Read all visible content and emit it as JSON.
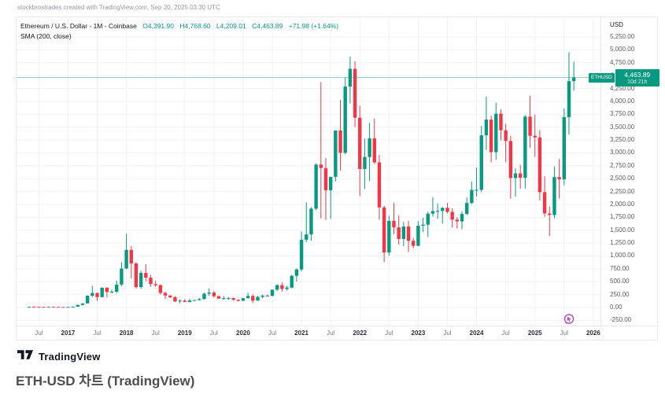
{
  "watermark": "stockbrostrades created with TradingView.com, Sep 20, 2025 03:30 UTC",
  "legend": {
    "symbol": "Ethereum / U.S. Dollar - 1M - Coinbase",
    "ohlc": [
      "O4,391.90",
      "H4,768.60",
      "L4,209.01",
      "C4,463.89",
      "+71.98 (+1.64%)"
    ],
    "indicator": "SMA (200, close)"
  },
  "price_scale": {
    "unit": "USD",
    "ticks": [
      "5,250.00",
      "5,000.00",
      "4,750.00",
      "4,500.00",
      "4,250.00",
      "4,000.00",
      "3,750.00",
      "3,500.00",
      "3,250.00",
      "3,000.00",
      "2,750.00",
      "2,500.00",
      "2,250.00",
      "2,000.00",
      "1,750.00",
      "1,500.00",
      "1,250.00",
      "1,000.00",
      "750.00",
      "500.00",
      "250.00",
      "0.00",
      "-250.00"
    ]
  },
  "current_price_label": {
    "symbol": "ETHUSD",
    "price": "4,463.89",
    "countdown": "10d 21h"
  },
  "time_scale": {
    "labels": [
      "Jul",
      "2017",
      "Jul",
      "2018",
      "Jul",
      "2019",
      "Jul",
      "2020",
      "Jul",
      "2021",
      "Jul",
      "2022",
      "Jul",
      "2023",
      "Jul",
      "2024",
      "Jul",
      "2025",
      "Jul",
      "2026"
    ]
  },
  "footer": {
    "brand": "TradingView",
    "caption": "ETH-USD 차트 (TradingView)"
  },
  "colors": {
    "up": "#089981",
    "down": "#f23645",
    "grid": "#f0f2f5",
    "price_line": "#089981"
  },
  "chart_data": {
    "type": "candlestick",
    "title": "Ethereum / U.S. Dollar - 1M - Coinbase",
    "xlabel": "",
    "ylabel": "USD",
    "ylim": [
      -250,
      5250
    ],
    "y_tick_step": 250,
    "price_line": 4463.89,
    "x": [
      "2016-05",
      "2016-06",
      "2016-07",
      "2016-08",
      "2016-09",
      "2016-10",
      "2016-11",
      "2016-12",
      "2017-01",
      "2017-02",
      "2017-03",
      "2017-04",
      "2017-05",
      "2017-06",
      "2017-07",
      "2017-08",
      "2017-09",
      "2017-10",
      "2017-11",
      "2017-12",
      "2018-01",
      "2018-02",
      "2018-03",
      "2018-04",
      "2018-05",
      "2018-06",
      "2018-07",
      "2018-08",
      "2018-09",
      "2018-10",
      "2018-11",
      "2018-12",
      "2019-01",
      "2019-02",
      "2019-03",
      "2019-04",
      "2019-05",
      "2019-06",
      "2019-07",
      "2019-08",
      "2019-09",
      "2019-10",
      "2019-11",
      "2019-12",
      "2020-01",
      "2020-02",
      "2020-03",
      "2020-04",
      "2020-05",
      "2020-06",
      "2020-07",
      "2020-08",
      "2020-09",
      "2020-10",
      "2020-11",
      "2020-12",
      "2021-01",
      "2021-02",
      "2021-03",
      "2021-04",
      "2021-05",
      "2021-06",
      "2021-07",
      "2021-08",
      "2021-09",
      "2021-10",
      "2021-11",
      "2021-12",
      "2022-01",
      "2022-02",
      "2022-03",
      "2022-04",
      "2022-05",
      "2022-06",
      "2022-07",
      "2022-08",
      "2022-09",
      "2022-10",
      "2022-11",
      "2022-12",
      "2023-01",
      "2023-02",
      "2023-03",
      "2023-04",
      "2023-05",
      "2023-06",
      "2023-07",
      "2023-08",
      "2023-09",
      "2023-10",
      "2023-11",
      "2023-12",
      "2024-01",
      "2024-02",
      "2024-03",
      "2024-04",
      "2024-05",
      "2024-06",
      "2024-07",
      "2024-08",
      "2024-09",
      "2024-10",
      "2024-11",
      "2024-12",
      "2025-01",
      "2025-02",
      "2025-03",
      "2025-04",
      "2025-05",
      "2025-06",
      "2025-07",
      "2025-08",
      "2025-09"
    ],
    "open": [
      9.0,
      14.0,
      12.2,
      11.6,
      11.2,
      13.2,
      11.4,
      9.6,
      8.2,
      10.7,
      16.2,
      50.2,
      79.8,
      228.7,
      280.7,
      201.3,
      383.0,
      301.4,
      305.8,
      445.2,
      756.7,
      1118,
      855,
      396,
      670,
      578,
      455,
      434,
      283,
      233,
      199,
      118,
      133,
      107,
      137,
      142,
      162,
      268,
      291,
      218,
      173,
      181,
      182,
      151,
      130,
      180,
      224,
      133,
      206,
      231,
      226,
      346,
      435,
      360,
      386,
      615,
      738,
      1315,
      1418,
      1918,
      2773,
      2706,
      2275,
      2536,
      3434,
      3001,
      4288,
      4632,
      3683,
      2688,
      2920,
      3283,
      2817,
      1942,
      1067,
      1681,
      1554,
      1329,
      1573,
      1294,
      1196,
      1586,
      1607,
      1822,
      1870,
      1874,
      1934,
      1856,
      1705,
      1671,
      1815,
      2028,
      2282,
      2283,
      3341,
      3647,
      3015,
      3762,
      3439,
      3232,
      2513,
      2602,
      2518,
      3704,
      3332,
      3300,
      2238,
      1824,
      1795,
      2530,
      2487,
      3694,
      4391.9
    ],
    "high": [
      15.1,
      21.5,
      13.4,
      13.3,
      13.6,
      13.4,
      11.9,
      9.8,
      11.5,
      16.4,
      55,
      80,
      235,
      420,
      290,
      390,
      395,
      345,
      522,
      881,
      1432,
      1193,
      880,
      715,
      838,
      628,
      519,
      446,
      308,
      238,
      222,
      157,
      161,
      166,
      147,
      183,
      288,
      366,
      319,
      239,
      224,
      199,
      192,
      158,
      188,
      288,
      253,
      227,
      249,
      253,
      346,
      447,
      489,
      420,
      635,
      758,
      1477,
      2042,
      1947,
      2800,
      4372,
      2900,
      2450,
      3382,
      4028,
      4460,
      4868,
      4780,
      3916,
      3283,
      3582,
      3666,
      2962,
      1977,
      1780,
      2030,
      1789,
      1663,
      1680,
      1350,
      1674,
      1742,
      1856,
      2141,
      2019,
      1948,
      2029,
      1925,
      1755,
      1864,
      2135,
      2445,
      2717,
      3525,
      4093,
      3728,
      3974,
      3844,
      3563,
      3330,
      2704,
      2768,
      3733,
      4106,
      3744,
      3444,
      2550,
      1955,
      2738,
      2880,
      3860,
      4955,
      4768.6
    ],
    "low": [
      8.9,
      10.5,
      9.7,
      9.9,
      11.0,
      11.3,
      9.1,
      6.9,
      8.0,
      10.4,
      15.9,
      41,
      76,
      201,
      130,
      196,
      195,
      275,
      280,
      410,
      740,
      565,
      368,
      362,
      511,
      404,
      403,
      249,
      167,
      181,
      102,
      80,
      103,
      102,
      124,
      139,
      158,
      225,
      192,
      164,
      152,
      151,
      132,
      116,
      126,
      177,
      86,
      131,
      176,
      216,
      216,
      317,
      308,
      325,
      370,
      505,
      700,
      1270,
      1295,
      1886,
      1728,
      1700,
      1718,
      2447,
      2657,
      2970,
      3959,
      3503,
      2160,
      2300,
      2458,
      2783,
      1702,
      881,
      1006,
      1421,
      1220,
      1190,
      1074,
      1150,
      1191,
      1461,
      1368,
      1765,
      1721,
      1626,
      1825,
      1551,
      1531,
      1519,
      1793,
      2004,
      2152,
      2235,
      3056,
      2817,
      2864,
      3240,
      2820,
      2111,
      2150,
      2306,
      2309,
      3101,
      2924,
      2077,
      1760,
      1385,
      1729,
      2112,
      2372,
      3356,
      4209.01
    ],
    "close": [
      14.0,
      12.2,
      11.6,
      11.2,
      13.2,
      11.4,
      9.6,
      8.2,
      10.7,
      16.2,
      50.2,
      79.8,
      228.7,
      280.7,
      201.3,
      383.0,
      301.4,
      305.8,
      445.2,
      756.7,
      1118,
      855,
      396,
      670,
      578,
      455,
      434,
      283,
      233,
      199,
      118,
      133,
      107,
      137,
      142,
      162,
      268,
      291,
      218,
      173,
      181,
      182,
      151,
      130,
      180,
      224,
      133,
      206,
      231,
      226,
      346,
      435,
      360,
      386,
      615,
      738,
      1315,
      1418,
      1918,
      2773,
      2706,
      2275,
      2536,
      3434,
      3001,
      4288,
      4632,
      3683,
      2688,
      2920,
      3283,
      2817,
      1942,
      1067,
      1681,
      1554,
      1329,
      1573,
      1294,
      1196,
      1586,
      1607,
      1822,
      1870,
      1874,
      1934,
      1856,
      1705,
      1671,
      1815,
      2028,
      2282,
      2283,
      3341,
      3647,
      3015,
      3762,
      3439,
      3232,
      2513,
      2602,
      2518,
      3704,
      3332,
      3300,
      2238,
      1824,
      1795,
      2530,
      2487,
      3694,
      4392,
      4463.89
    ]
  }
}
